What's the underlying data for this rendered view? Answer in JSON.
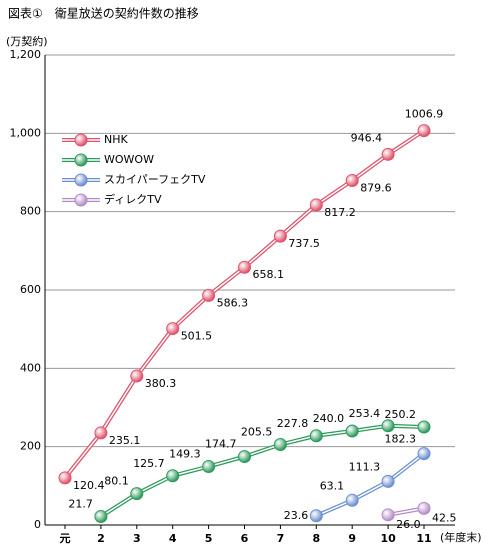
{
  "chart_data": {
    "type": "line",
    "title": "図表①　衛星放送の契約件数の推移",
    "y_label": "(万契約)",
    "x_label": "(年度末)",
    "categories": [
      "元",
      "2",
      "3",
      "4",
      "5",
      "6",
      "7",
      "8",
      "9",
      "10",
      "11"
    ],
    "ylim": [
      0,
      1200
    ],
    "yticks": [
      0,
      200,
      400,
      600,
      800,
      {
        "value": 1000,
        "label": "1,000"
      },
      {
        "value": 1200,
        "label": "1,200"
      }
    ],
    "grid": true,
    "legend": "upper left",
    "series": [
      {
        "name": "NHK",
        "color": "#e0506a",
        "values": [
          120.4,
          235.1,
          380.3,
          501.5,
          586.3,
          658.1,
          737.5,
          817.2,
          879.6,
          946.4,
          1006.9
        ]
      },
      {
        "name": "WOWOW",
        "color": "#2a9a5a",
        "values": [
          null,
          21.7,
          80.1,
          125.7,
          149.3,
          174.7,
          205.5,
          227.8,
          240.0,
          253.4,
          250.2
        ],
        "value_labels": [
          null,
          "21.7",
          "80.1",
          "125.7",
          "149.3",
          "174.7",
          "205.5",
          "227.8",
          "240.0",
          "253.4",
          "250.2"
        ]
      },
      {
        "name": "スカイパーフェクTV",
        "color": "#6a8fd0",
        "values": [
          null,
          null,
          null,
          null,
          null,
          null,
          null,
          23.6,
          63.1,
          111.3,
          182.3
        ]
      },
      {
        "name": "ディレクTV",
        "color": "#b48cc8",
        "values": [
          null,
          null,
          null,
          null,
          null,
          null,
          null,
          null,
          null,
          26.0,
          42.5
        ],
        "value_labels": [
          null,
          null,
          null,
          null,
          null,
          null,
          null,
          null,
          null,
          "26.0",
          "42.5"
        ]
      }
    ]
  }
}
